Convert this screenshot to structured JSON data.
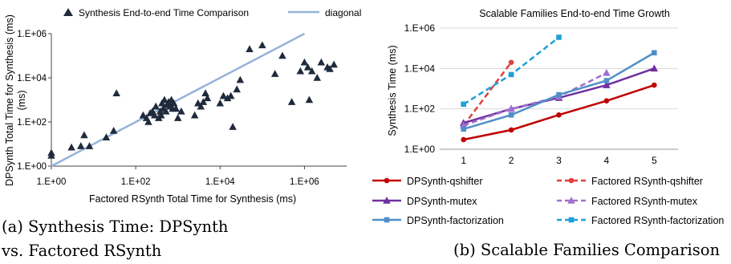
{
  "captions": {
    "a": "(a) Synthesis Time: DPSynth vs. Factored RSynth",
    "b": "(b) Scalable Families Comparison"
  },
  "chart_data": [
    {
      "type": "scatter",
      "legend": [
        "Synthesis End-to-end Time Comparison",
        "diagonal"
      ],
      "legend_position": "top",
      "xlabel": "Factored RSynth Total Time for Synthesis (ms)",
      "ylabel": "DPSynth Total  Time for Synthesis (ms)",
      "xscale": "log",
      "yscale": "log",
      "xlim": [
        1,
        10000000
      ],
      "ylim": [
        1,
        1000000
      ],
      "x_ticks": [
        "1.E+00",
        "1.E+02",
        "1.E+04",
        "1.E+06"
      ],
      "y_ticks": [
        "1.E+00",
        "1.E+02",
        "1.E+04",
        "1.E+06"
      ],
      "grid": false,
      "diagonal": {
        "name": "diagonal",
        "x": [
          1,
          1000000
        ],
        "y": [
          1,
          1000000
        ],
        "color": "#95b3d7"
      },
      "series": [
        {
          "name": "Synthesis End-to-end Time Comparison",
          "color": "#1f2a3c",
          "points": [
            [
              1,
              3
            ],
            [
              1,
              4
            ],
            [
              3,
              7
            ],
            [
              5,
              8
            ],
            [
              6,
              25
            ],
            [
              8,
              8
            ],
            [
              20,
              20
            ],
            [
              30,
              40
            ],
            [
              35,
              2000
            ],
            [
              150,
              200
            ],
            [
              180,
              150
            ],
            [
              200,
              100
            ],
            [
              220,
              250
            ],
            [
              250,
              300
            ],
            [
              280,
              200
            ],
            [
              300,
              500
            ],
            [
              350,
              150
            ],
            [
              380,
              300
            ],
            [
              400,
              200
            ],
            [
              420,
              700
            ],
            [
              450,
              400
            ],
            [
              480,
              1000
            ],
            [
              520,
              300
            ],
            [
              550,
              600
            ],
            [
              600,
              800
            ],
            [
              650,
              500
            ],
            [
              700,
              1000
            ],
            [
              750,
              400
            ],
            [
              800,
              700
            ],
            [
              900,
              400
            ],
            [
              1000,
              150
            ],
            [
              1200,
              300
            ],
            [
              2500,
              200
            ],
            [
              3000,
              700
            ],
            [
              3500,
              500
            ],
            [
              4000,
              800
            ],
            [
              4500,
              2000
            ],
            [
              5000,
              1200
            ],
            [
              10000,
              700
            ],
            [
              12000,
              1500
            ],
            [
              15000,
              1200
            ],
            [
              18000,
              1500
            ],
            [
              20000,
              60
            ],
            [
              25000,
              3000
            ],
            [
              30000,
              8000
            ],
            [
              50000,
              200000
            ],
            [
              100000,
              300000
            ],
            [
              200000,
              15000
            ],
            [
              300000,
              100000
            ],
            [
              500000,
              800
            ],
            [
              800000,
              20000
            ],
            [
              1000000,
              50000
            ],
            [
              1200000,
              30000
            ],
            [
              1300000,
              1000
            ],
            [
              1500000,
              20000
            ],
            [
              2000000,
              10000
            ],
            [
              2500000,
              50000
            ],
            [
              3500000,
              30000
            ],
            [
              4000000,
              25000
            ],
            [
              5000000,
              40000
            ]
          ]
        }
      ]
    },
    {
      "type": "line",
      "title": "Scalable Families End-to-end Time Growth",
      "ylabel": "Synthesis Time (ms)",
      "xlabel": "",
      "x": [
        1,
        2,
        3,
        4,
        5
      ],
      "yscale": "log",
      "ylim": [
        1,
        1000000
      ],
      "y_ticks": [
        "1.E+00",
        "1.E+02",
        "1.E+04",
        "1.E+06"
      ],
      "grid": true,
      "legend_position": "bottom",
      "series": [
        {
          "name": "DPSynth-qshifter",
          "color": "#c00000",
          "dashed": false,
          "marker": "circle",
          "x": [
            1,
            2,
            3,
            4,
            5
          ],
          "y": [
            3,
            9,
            50,
            250,
            1500
          ]
        },
        {
          "name": "Factored RSynth-qshifter",
          "color": "#e04040",
          "dashed": true,
          "marker": "circle",
          "x": [
            1,
            2
          ],
          "y": [
            15,
            20000
          ]
        },
        {
          "name": "DPSynth-mutex",
          "color": "#7030a0",
          "dashed": false,
          "marker": "triangle",
          "x": [
            1,
            2,
            3,
            4,
            5
          ],
          "y": [
            20,
            100,
            350,
            1500,
            10000
          ]
        },
        {
          "name": "Factored RSynth-mutex",
          "color": "#a070d0",
          "dashed": true,
          "marker": "triangle",
          "x": [
            1,
            2,
            3,
            4
          ],
          "y": [
            15,
            100,
            400,
            6000
          ]
        },
        {
          "name": "DPSynth-factorization",
          "color": "#4f8fc8",
          "dashed": false,
          "marker": "square",
          "x": [
            1,
            2,
            3,
            4,
            5
          ],
          "y": [
            10,
            50,
            500,
            2500,
            60000
          ]
        },
        {
          "name": "Factored RSynth-factorization",
          "color": "#1f9fd8",
          "dashed": true,
          "marker": "square",
          "x": [
            1,
            2,
            3
          ],
          "y": [
            170,
            5000,
            350000
          ]
        }
      ]
    }
  ]
}
